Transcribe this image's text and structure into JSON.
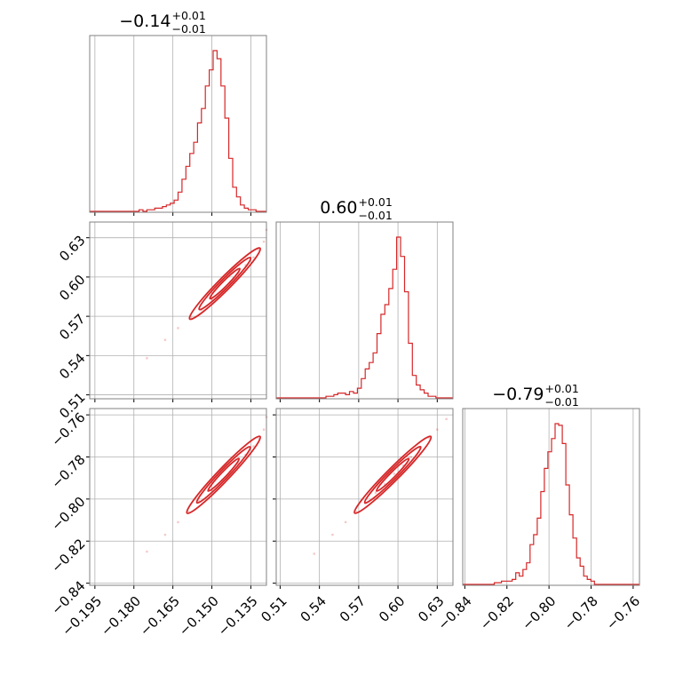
{
  "colors": {
    "series": "#d62728",
    "grid": "#b0b0b0",
    "frame": "#808080"
  },
  "chart_data": {
    "type": "corner",
    "grid": true,
    "params": [
      {
        "range": [
          -0.197,
          -0.129
        ],
        "ticks": [
          -0.195,
          -0.18,
          -0.165,
          -0.15,
          -0.135
        ],
        "tick_labels": [
          "−0.195",
          "−0.180",
          "−0.165",
          "−0.150",
          "−0.135"
        ],
        "title_value": "−0.14",
        "title_plus": "+0.01",
        "title_minus": "−0.01",
        "hist_x0": -0.178,
        "hist_step": 0.0015,
        "hist_counts": [
          1,
          0,
          1,
          1,
          2,
          2,
          3,
          4,
          5,
          7,
          12,
          20,
          28,
          36,
          43,
          55,
          64,
          78,
          88,
          100,
          95,
          78,
          58,
          33,
          15,
          9,
          4,
          2,
          1,
          1
        ]
      },
      {
        "range": [
          0.507,
          0.642
        ],
        "ticks": [
          0.51,
          0.54,
          0.57,
          0.6,
          0.63
        ],
        "tick_labels": [
          "0.51",
          "0.54",
          "0.57",
          "0.60",
          "0.63"
        ],
        "title_value": "0.60",
        "title_plus": "+0.01",
        "title_minus": "−0.01",
        "hist_x0": 0.545,
        "hist_step": 0.003,
        "hist_counts": [
          1,
          1,
          2,
          3,
          3,
          2,
          4,
          3,
          6,
          12,
          18,
          22,
          28,
          40,
          52,
          58,
          68,
          80,
          100,
          88,
          66,
          34,
          14,
          8,
          5,
          3,
          1,
          1
        ]
      },
      {
        "range": [
          -0.841,
          -0.757
        ],
        "ticks": [
          -0.84,
          -0.82,
          -0.8,
          -0.78,
          -0.76
        ],
        "tick_labels": [
          "−0.84",
          "−0.82",
          "−0.80",
          "−0.78",
          "−0.76"
        ],
        "title_value": "−0.79",
        "title_plus": "+0.01",
        "title_minus": "−0.01",
        "hist_x0": -0.826,
        "hist_step": 0.0017,
        "hist_counts": [
          1,
          1,
          2,
          2,
          2,
          3,
          7,
          5,
          9,
          13,
          24,
          30,
          40,
          56,
          70,
          80,
          88,
          97,
          96,
          85,
          60,
          42,
          28,
          16,
          11,
          5,
          3,
          2
        ]
      }
    ],
    "pairs": [
      {
        "x": 0,
        "y": 1,
        "slope": 1.96,
        "points": [
          [
            -0.175,
            0.538
          ],
          [
            -0.168,
            0.552
          ],
          [
            -0.163,
            0.561
          ],
          [
            -0.158,
            0.569
          ],
          [
            -0.154,
            0.575
          ],
          [
            -0.15,
            0.583
          ],
          [
            -0.146,
            0.589
          ],
          [
            -0.143,
            0.596
          ],
          [
            -0.14,
            0.603
          ],
          [
            -0.137,
            0.609
          ],
          [
            -0.134,
            0.615
          ],
          [
            -0.132,
            0.621
          ],
          [
            -0.13,
            0.627
          ],
          [
            -0.129,
            0.636
          ]
        ]
      },
      {
        "x": 0,
        "y": 2,
        "slope": 1.2,
        "points": [
          [
            -0.175,
            -0.825
          ],
          [
            -0.168,
            -0.817
          ],
          [
            -0.163,
            -0.811
          ],
          [
            -0.159,
            -0.806
          ],
          [
            -0.155,
            -0.801
          ],
          [
            -0.15,
            -0.796
          ],
          [
            -0.146,
            -0.791
          ],
          [
            -0.143,
            -0.787
          ],
          [
            -0.14,
            -0.783
          ],
          [
            -0.137,
            -0.779
          ],
          [
            -0.134,
            -0.775
          ],
          [
            -0.132,
            -0.771
          ],
          [
            -0.13,
            -0.767
          ],
          [
            -0.129,
            -0.761
          ]
        ]
      },
      {
        "x": 1,
        "y": 2,
        "slope": 0.62,
        "points": [
          [
            0.536,
            -0.826
          ],
          [
            0.55,
            -0.817
          ],
          [
            0.56,
            -0.811
          ],
          [
            0.568,
            -0.806
          ],
          [
            0.575,
            -0.802
          ],
          [
            0.583,
            -0.797
          ],
          [
            0.59,
            -0.793
          ],
          [
            0.597,
            -0.788
          ],
          [
            0.604,
            -0.784
          ],
          [
            0.61,
            -0.78
          ],
          [
            0.617,
            -0.776
          ],
          [
            0.624,
            -0.771
          ],
          [
            0.63,
            -0.767
          ],
          [
            0.637,
            -0.762
          ]
        ]
      }
    ]
  }
}
